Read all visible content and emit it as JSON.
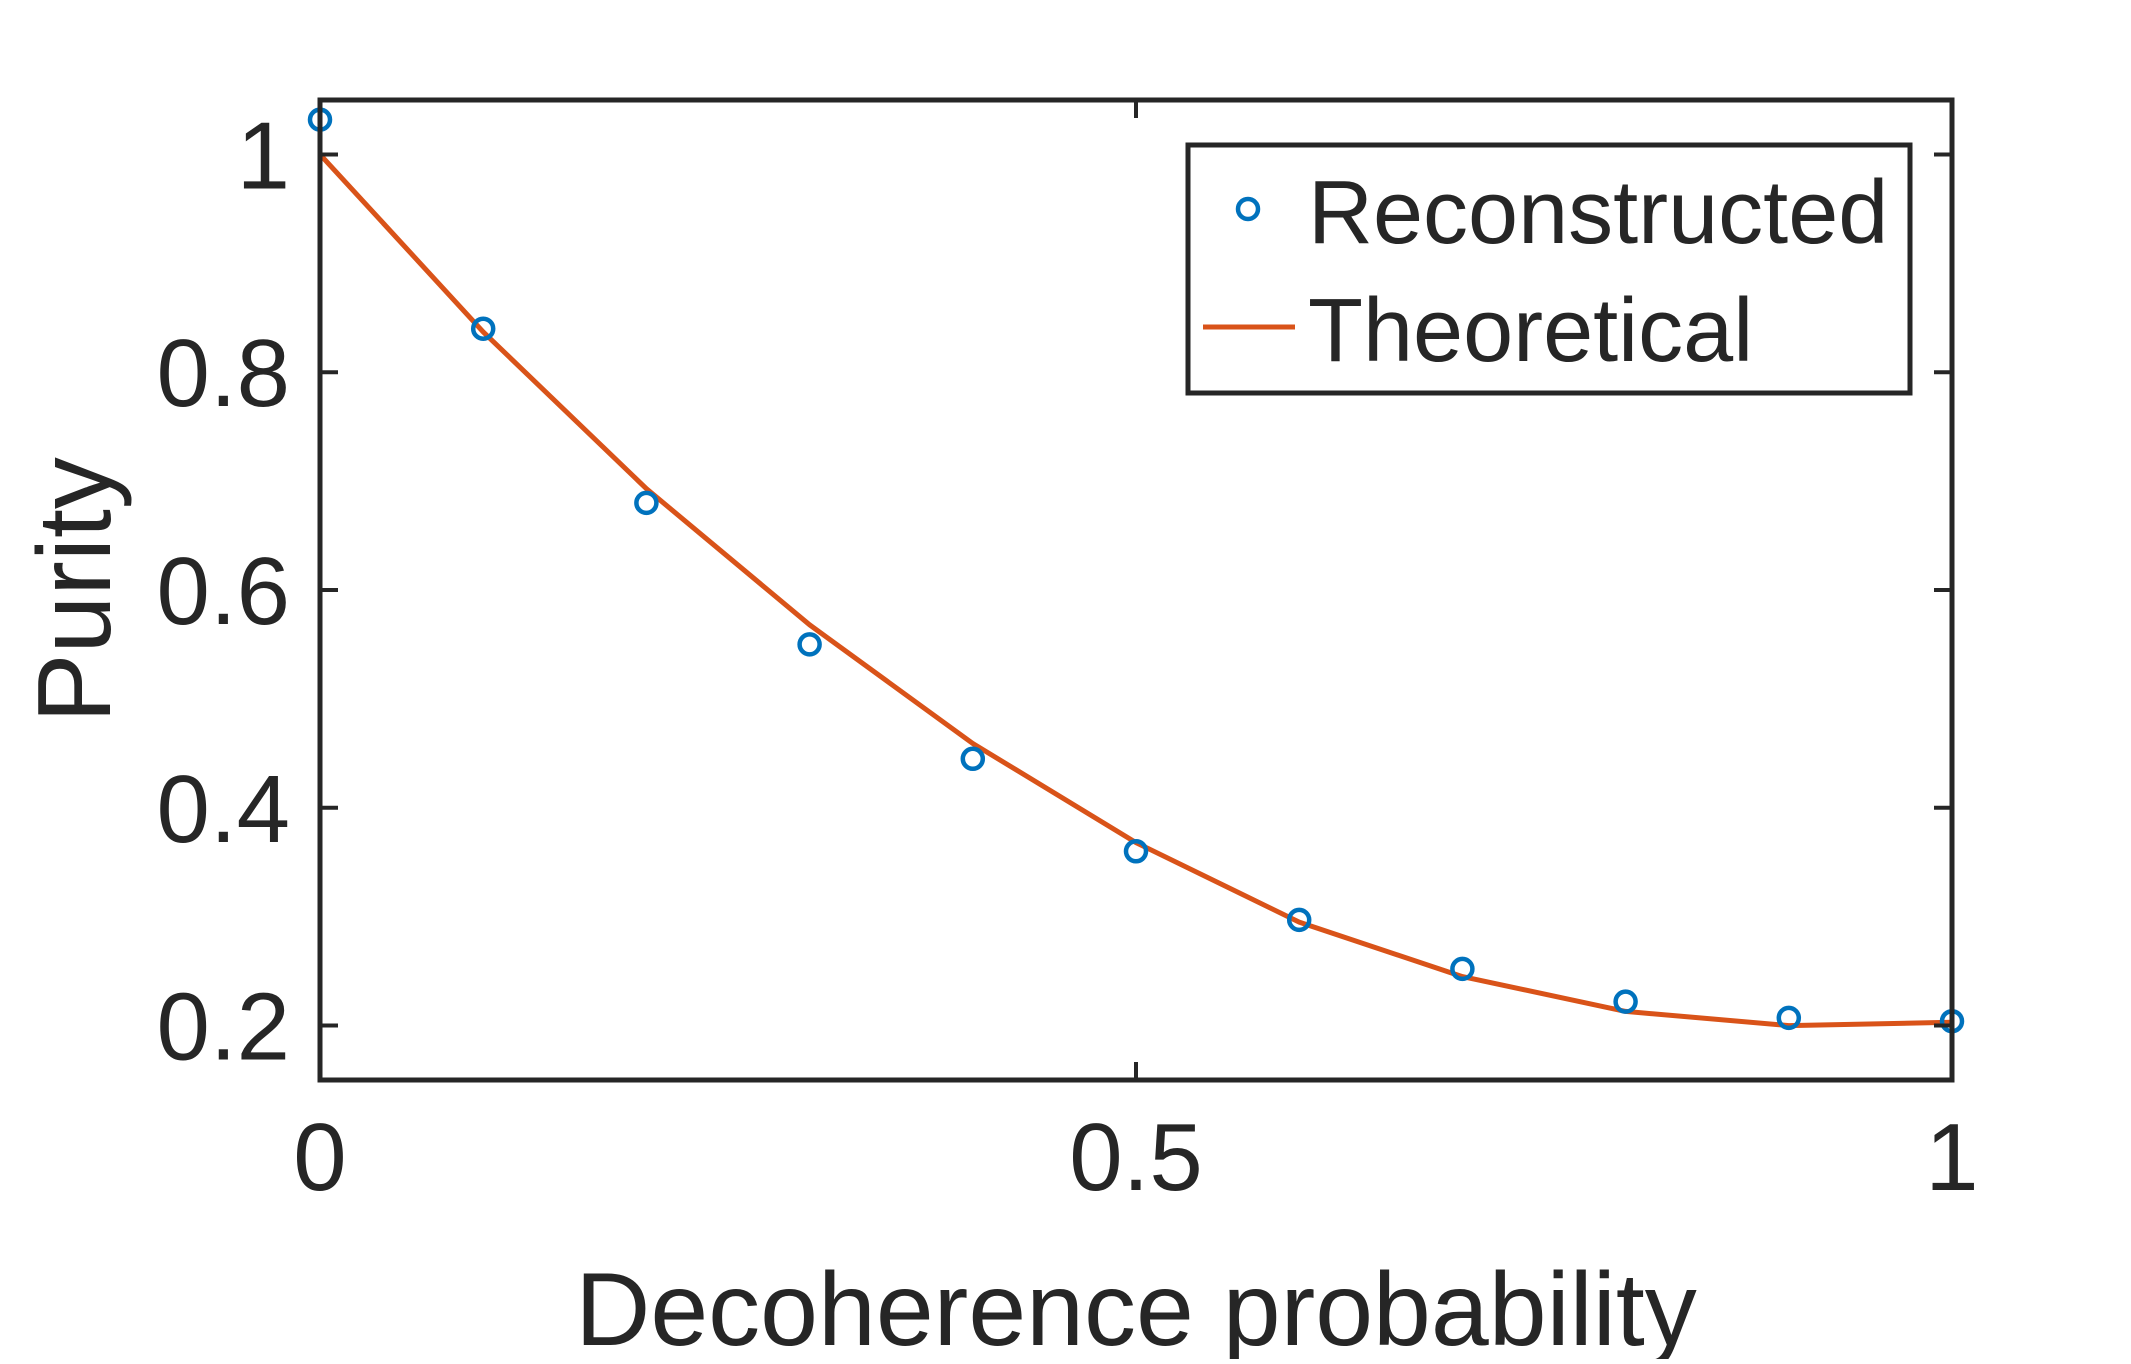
{
  "chart_data": {
    "type": "line",
    "title": "",
    "xlabel": "Decoherence probability",
    "ylabel": "Purity",
    "xlim": [
      0,
      1
    ],
    "ylim": [
      0.15,
      1.05
    ],
    "x_ticks": [
      0,
      0.5,
      1
    ],
    "x_tick_labels": [
      "0",
      "0.5",
      "1"
    ],
    "y_ticks": [
      0.2,
      0.4,
      0.6,
      0.8,
      1
    ],
    "y_tick_labels": [
      "0.2",
      "0.4",
      "0.6",
      "0.8",
      "1"
    ],
    "grid": false,
    "legend_position": "top-right",
    "series": [
      {
        "name": "Reconstructed",
        "style": "markers",
        "marker": "circle",
        "color": "#0072BD",
        "x": [
          0,
          0.1,
          0.2,
          0.3,
          0.4,
          0.5,
          0.6,
          0.7,
          0.8,
          0.9,
          1.0
        ],
        "y": [
          1.032,
          0.84,
          0.68,
          0.55,
          0.445,
          0.36,
          0.297,
          0.252,
          0.222,
          0.207,
          0.204
        ]
      },
      {
        "name": "Theoretical",
        "style": "line",
        "color": "#D95319",
        "x": [
          0,
          0.1,
          0.2,
          0.3,
          0.4,
          0.5,
          0.6,
          0.7,
          0.8,
          0.9,
          1.0
        ],
        "y": [
          1.0,
          0.837,
          0.693,
          0.568,
          0.459,
          0.368,
          0.295,
          0.245,
          0.213,
          0.2,
          0.203
        ]
      }
    ]
  }
}
